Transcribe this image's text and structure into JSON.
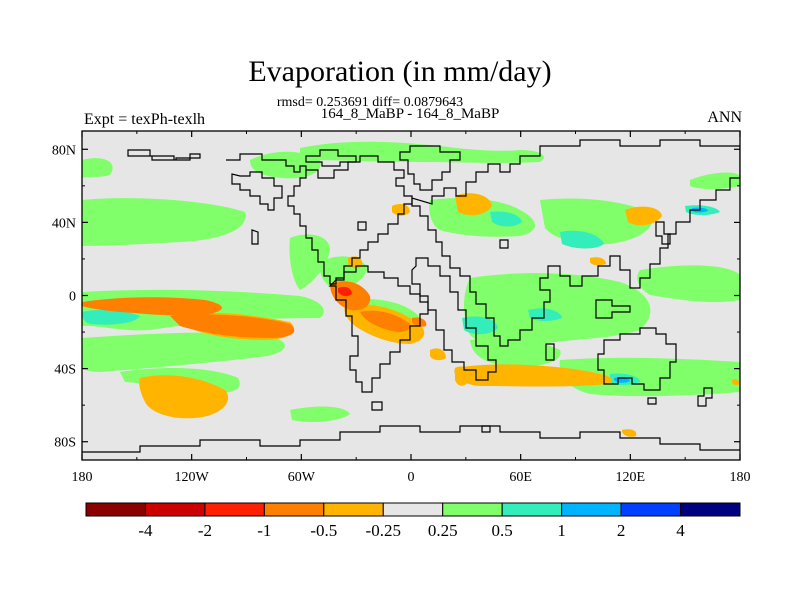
{
  "chart_data": {
    "type": "heatmap",
    "title": "Evaporation (in mm/day)",
    "stats_line": "rmsd= 0.253691 diff= 0.0879643",
    "subtitle": "164_8_MaBP - 164_8_MaBP",
    "left_label": "Expt = texPh-texlh",
    "right_label": "ANN",
    "x_ticks": [
      {
        "lon": -180,
        "label": "180"
      },
      {
        "lon": -120,
        "label": "120W"
      },
      {
        "lon": -60,
        "label": "60W"
      },
      {
        "lon": 0,
        "label": "0"
      },
      {
        "lon": 60,
        "label": "60E"
      },
      {
        "lon": 120,
        "label": "120E"
      },
      {
        "lon": 180,
        "label": "180"
      }
    ],
    "y_ticks": [
      {
        "lat": 80,
        "label": "80N"
      },
      {
        "lat": 40,
        "label": "40N"
      },
      {
        "lat": 0,
        "label": "0"
      },
      {
        "lat": -40,
        "label": "40S"
      },
      {
        "lat": -80,
        "label": "80S"
      }
    ],
    "lon_range": [
      -180,
      180
    ],
    "lat_range": [
      -90,
      90
    ],
    "colorbar": {
      "levels": [
        "-4",
        "-2",
        "-1",
        "-0.5",
        "-0.25",
        "0.25",
        "0.5",
        "1",
        "2",
        "4"
      ],
      "colors": [
        "#8b0000",
        "#cc0000",
        "#ff2000",
        "#ff8000",
        "#ffb400",
        "#e6e6e6",
        "#80ff6a",
        "#33eebb",
        "#00b4ff",
        "#0040ff",
        "#000080"
      ]
    },
    "background_color": "#e6e6e6",
    "regions": [
      {
        "name": "tropical-pacific-negative",
        "color": "#ff8000",
        "level": "-1 to -0.5",
        "lon_range": [
          -170,
          -100
        ],
        "lat_range": [
          -10,
          0
        ]
      },
      {
        "name": "south-pacific-negative",
        "color": "#ffb400",
        "level": "-0.5 to -0.25",
        "lon_range": [
          -150,
          -110
        ],
        "lat_range": [
          -70,
          -50
        ]
      },
      {
        "name": "pacific-positive-band",
        "color": "#80ff6a",
        "level": "0.25 to 0.5",
        "lon_range": [
          -180,
          -90
        ],
        "lat_range": [
          -40,
          -15
        ]
      },
      {
        "name": "equatorial-pacific-cyan",
        "color": "#33eebb",
        "level": "0.5 to 1",
        "lon_range": [
          -180,
          -145
        ],
        "lat_range": [
          -15,
          -10
        ]
      },
      {
        "name": "south-america-negative",
        "color": "#ff8000",
        "level": "-1 to -0.5",
        "lon_range": [
          -45,
          -25
        ],
        "lat_range": [
          -15,
          5
        ]
      },
      {
        "name": "indian-ocean-positive",
        "color": "#80ff6a",
        "level": "0.25 to 0.5",
        "lon_range": [
          20,
          120
        ],
        "lat_range": [
          -30,
          10
        ]
      },
      {
        "name": "southern-ocean-negative",
        "color": "#ffb400",
        "level": "-0.5 to -0.25",
        "lon_range": [
          30,
          130
        ],
        "lat_range": [
          -50,
          -40
        ]
      }
    ]
  }
}
